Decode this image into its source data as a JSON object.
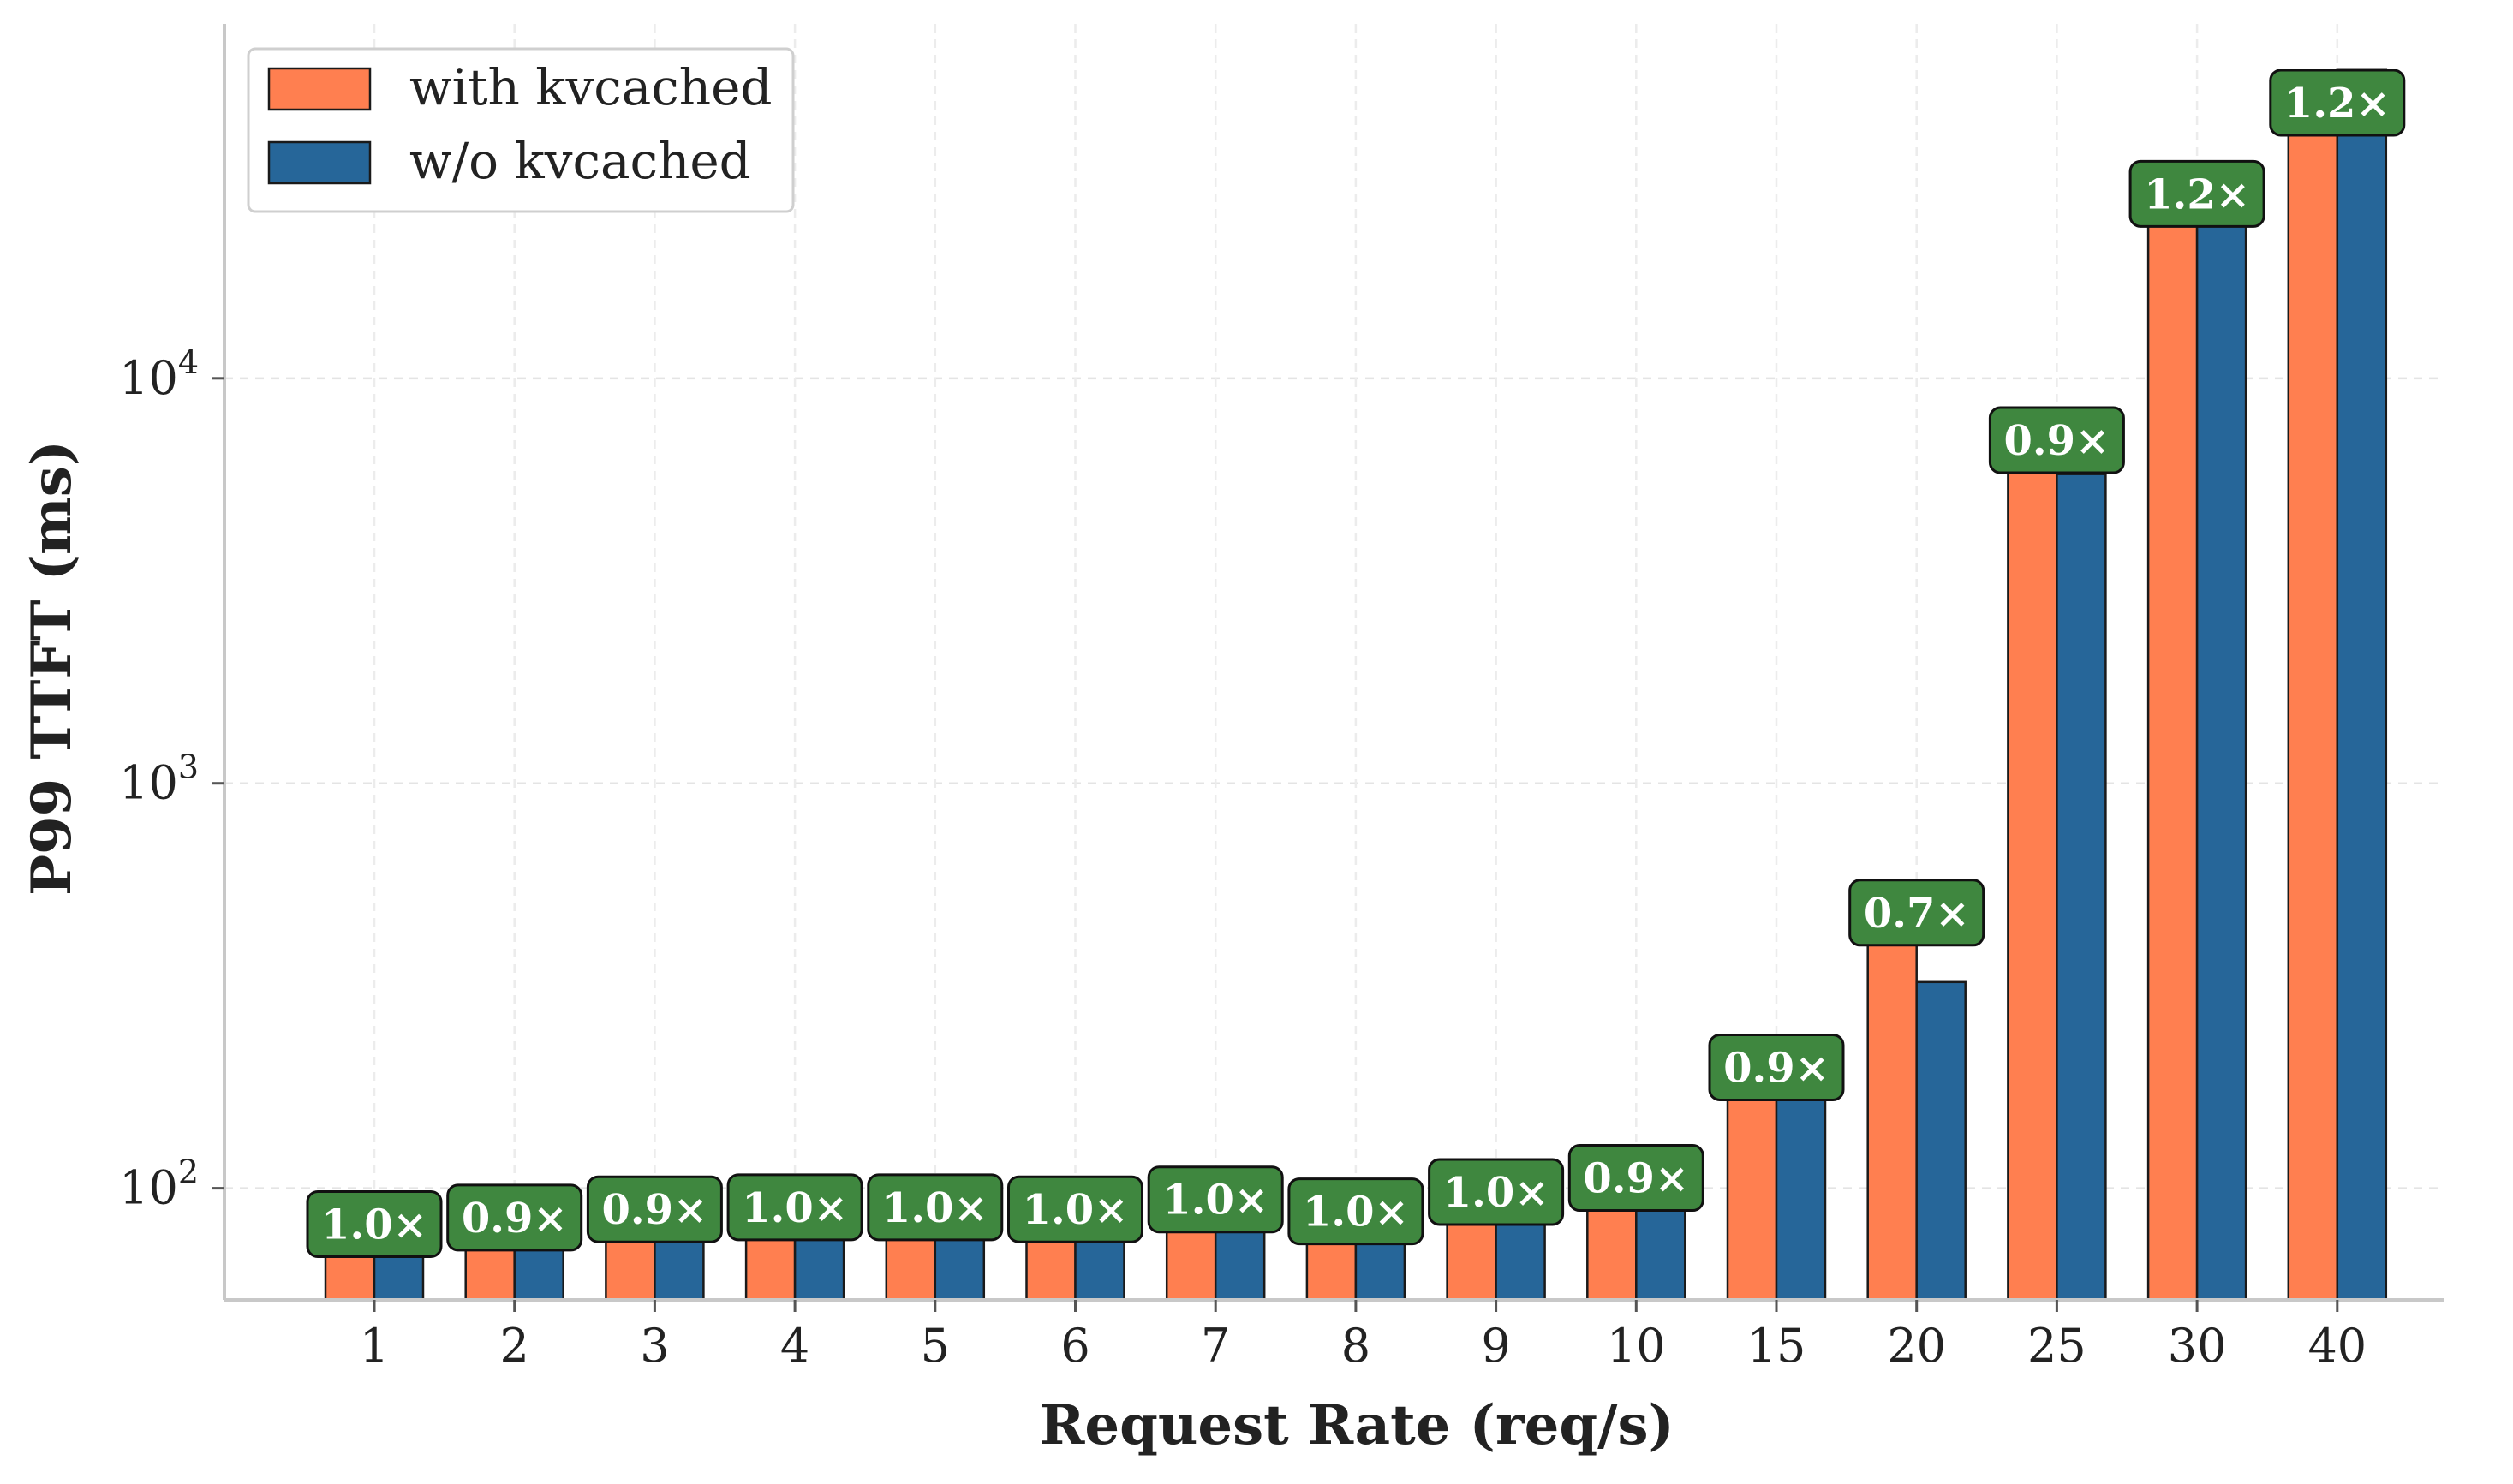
{
  "chart_data": {
    "type": "bar",
    "title": "",
    "xlabel": "Request Rate (req/s)",
    "ylabel": "P99 TTFT (ms)",
    "y_scale": "log",
    "ylim": [
      53,
      75000
    ],
    "y_ticks": [
      {
        "value": 100,
        "base": "10",
        "exp": "2"
      },
      {
        "value": 1000,
        "base": "10",
        "exp": "3"
      },
      {
        "value": 10000,
        "base": "10",
        "exp": "4"
      }
    ],
    "grid": true,
    "legend_position": "top-left",
    "categories": [
      "1",
      "2",
      "3",
      "4",
      "5",
      "6",
      "7",
      "8",
      "9",
      "10",
      "15",
      "20",
      "25",
      "30",
      "40"
    ],
    "series": [
      {
        "name": "with kvcached",
        "color": "#FF7F50",
        "values": [
          80,
          83,
          87,
          88,
          88,
          87,
          92,
          86,
          96,
          104,
          195,
          470,
          6900,
          28000,
          47000
        ]
      },
      {
        "name": "w/o kvcached",
        "color": "#266699",
        "values": [
          78,
          73,
          81,
          84,
          93,
          92,
          93,
          86,
          97,
          93,
          168,
          323,
          5800,
          34000,
          58000
        ]
      }
    ],
    "annotations": [
      "1.0×",
      "0.9×",
      "0.9×",
      "1.0×",
      "1.0×",
      "1.0×",
      "1.0×",
      "1.0×",
      "1.0×",
      "0.9×",
      "0.9×",
      "0.7×",
      "0.9×",
      "1.2×",
      "1.2×"
    ],
    "annotation_color": "#3F873F"
  }
}
